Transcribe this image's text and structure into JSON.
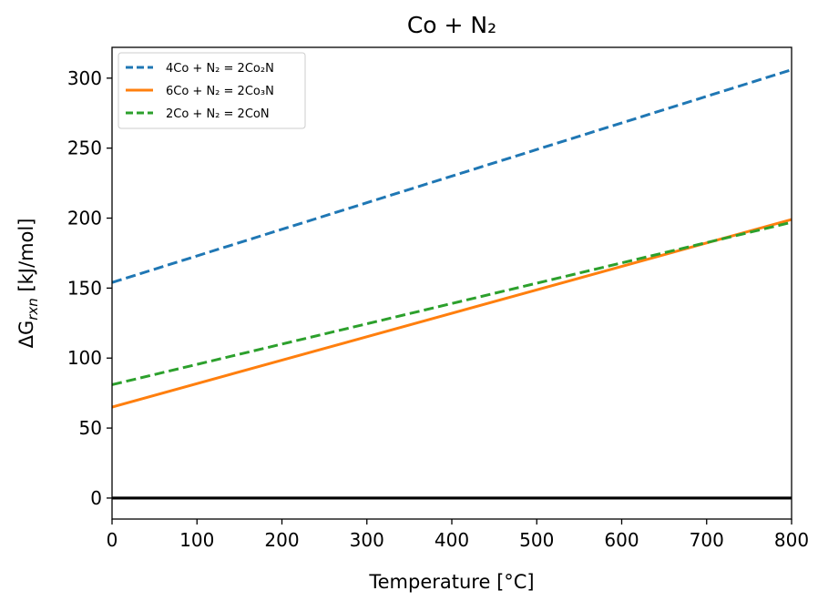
{
  "chart_data": {
    "type": "line",
    "title": "Co + N₂",
    "xlabel": "Temperature [°C]",
    "ylabel_prefix": "ΔG",
    "ylabel_subscript": "rxn",
    "ylabel_suffix": " [kJ/mol]",
    "xlim": [
      0,
      800
    ],
    "ylim": [
      -15,
      322
    ],
    "xticks": [
      0,
      100,
      200,
      300,
      400,
      500,
      600,
      700,
      800
    ],
    "yticks": [
      0,
      50,
      100,
      150,
      200,
      250,
      300
    ],
    "grid": false,
    "legend_position": "top-left",
    "series": [
      {
        "name": "4Co + N₂ = 2Co₂N",
        "color": "#1f77b4",
        "style": "dashed",
        "x": [
          0,
          800
        ],
        "y": [
          154,
          306
        ]
      },
      {
        "name": "6Co + N₂ = 2Co₃N",
        "color": "#ff7f0e",
        "style": "solid",
        "x": [
          0,
          800
        ],
        "y": [
          65,
          199
        ]
      },
      {
        "name": "2Co + N₂ = 2CoN",
        "color": "#2ca02c",
        "style": "dashed",
        "x": [
          0,
          800
        ],
        "y": [
          81,
          197
        ]
      }
    ],
    "reference_lines": [
      {
        "y": 0,
        "color": "#000000"
      }
    ]
  }
}
